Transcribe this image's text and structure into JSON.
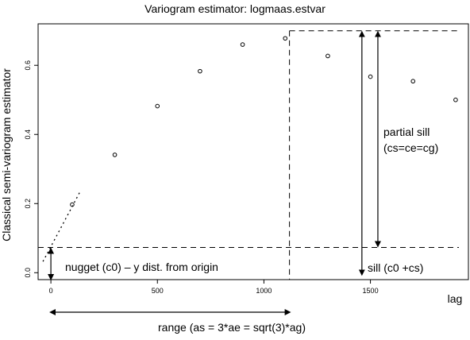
{
  "chart_data": {
    "type": "scatter",
    "title": "Variogram estimator: logmaas.estvar",
    "xlabel": "lag",
    "ylabel": "Classical semi-variogram estimator",
    "xlim": [
      -60,
      1960
    ],
    "ylim": [
      -0.02,
      0.72
    ],
    "x_ticks": [
      0,
      500,
      1000,
      1500
    ],
    "y_ticks": [
      0.0,
      0.2,
      0.4,
      0.6
    ],
    "x_tick_labels": [
      "0",
      "500",
      "1000",
      "1500"
    ],
    "y_tick_labels": [
      "0.0",
      "0.2",
      "0.4",
      "0.6"
    ],
    "grid": false,
    "legend": "none",
    "series": [
      {
        "x": [
          100,
          300,
          500,
          700,
          900,
          1100,
          1300,
          1500,
          1700,
          1900
        ],
        "y": [
          0.197,
          0.341,
          0.482,
          0.583,
          0.66,
          0.678,
          0.627,
          0.567,
          0.554,
          0.5
        ]
      }
    ],
    "initial_slope_line": {
      "x": [
        0,
        140
      ],
      "y": [
        0.053,
        0.238
      ]
    },
    "nugget": 0.073,
    "sill": 0.7,
    "range": 1120,
    "sill_arrow_lags": [
      1460,
      1535
    ],
    "annotations": {
      "nugget": "nugget (c0) – y dist. from origin",
      "partial_sill_line1": "partial sill",
      "partial_sill_line2": "(cs=ce=cg)",
      "sill": "sill (c0 +cs)",
      "range": "range (as = 3*ae = sqrt(3)*ag)"
    }
  }
}
